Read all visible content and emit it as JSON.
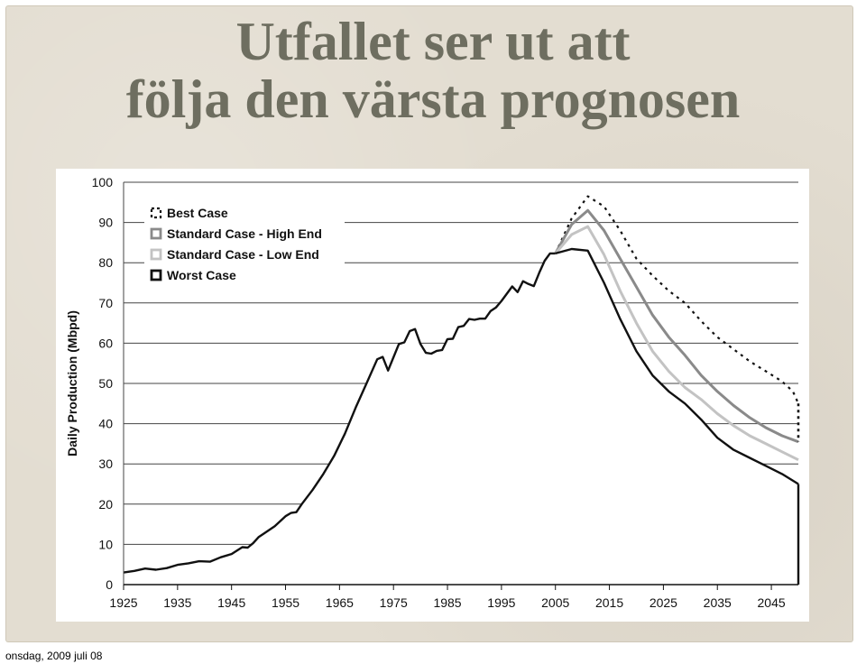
{
  "slide": {
    "title_line1": "Utfallet ser ut att",
    "title_line2": "följa den värsta prognosen",
    "footer_date": "onsdag, 2009 juli 08"
  },
  "colors": {
    "best": "#111111",
    "high": "#8a8a8a",
    "low": "#c3c3c3",
    "worst": "#111111",
    "title": "#6e6e60"
  },
  "chart_data": {
    "type": "line",
    "title": "",
    "xlabel": "",
    "ylabel": "Daily Production (Mbpd)",
    "xlim": [
      1925,
      2050
    ],
    "ylim": [
      0,
      100
    ],
    "x_ticks": [
      1925,
      1935,
      1945,
      1955,
      1965,
      1975,
      1985,
      1995,
      2005,
      2015,
      2025,
      2035,
      2045
    ],
    "y_ticks": [
      0,
      10,
      20,
      30,
      40,
      50,
      60,
      70,
      80,
      90,
      100
    ],
    "grid": "horizontal",
    "legend_position": "top-left",
    "historical": {
      "x": [
        1925,
        1927,
        1929,
        1931,
        1933,
        1935,
        1937,
        1939,
        1941,
        1943,
        1945,
        1947,
        1948,
        1949,
        1950,
        1951,
        1953,
        1955,
        1956,
        1957,
        1958,
        1960,
        1962,
        1964,
        1966,
        1968,
        1970,
        1972,
        1973,
        1974,
        1975,
        1976,
        1977,
        1978,
        1979,
        1980,
        1981,
        1982,
        1983,
        1984,
        1985,
        1986,
        1987,
        1988,
        1989,
        1990,
        1991,
        1992,
        1993,
        1994,
        1995,
        1996,
        1997,
        1998,
        1999,
        2000,
        2001,
        2002,
        2003,
        2004,
        2005
      ],
      "y": [
        3,
        3.4,
        4,
        3.7,
        4.1,
        4.9,
        5.3,
        5.8,
        5.7,
        6.8,
        7.6,
        9.3,
        9.2,
        10.3,
        11.8,
        12.7,
        14.5,
        17,
        17.8,
        18,
        20,
        23.5,
        27.5,
        32,
        37.5,
        44,
        50,
        56,
        56.6,
        53.2,
        56.5,
        59.8,
        60.2,
        63,
        63.5,
        59.8,
        57.6,
        57.4,
        58.1,
        58.3,
        61,
        61.1,
        64,
        64.3,
        66,
        65.8,
        66.1,
        66.1,
        68,
        68.9,
        70.5,
        72.3,
        74.1,
        72.7,
        75.4,
        74.7,
        74.2,
        77.5,
        80.5,
        82.3,
        82.3
      ]
    },
    "series": [
      {
        "name": "Best Case",
        "style": "dotted",
        "x": [
          2005,
          2008,
          2011,
          2014,
          2017,
          2020,
          2023,
          2026,
          2029,
          2032,
          2035,
          2038,
          2041,
          2044,
          2047,
          2049,
          2050
        ],
        "y": [
          82.3,
          91,
          96.5,
          94,
          88,
          81,
          76.8,
          73,
          70,
          65.5,
          61.5,
          58.5,
          55.5,
          53,
          50.5,
          48,
          45
        ]
      },
      {
        "name": "Standard Case - High End",
        "style": "solid",
        "x": [
          2005,
          2008,
          2011,
          2014,
          2017,
          2020,
          2023,
          2026,
          2029,
          2032,
          2035,
          2038,
          2041,
          2044,
          2047,
          2050
        ],
        "y": [
          82.3,
          89.5,
          93,
          88,
          81,
          74,
          67,
          61.5,
          57,
          52,
          48,
          44.5,
          41.5,
          39,
          37,
          35.5
        ]
      },
      {
        "name": "Standard Case - Low End",
        "style": "solid",
        "x": [
          2005,
          2008,
          2011,
          2014,
          2017,
          2020,
          2023,
          2026,
          2029,
          2032,
          2035,
          2038,
          2041,
          2044,
          2047,
          2050
        ],
        "y": [
          82.3,
          87,
          89,
          82,
          73,
          65,
          58,
          53,
          49,
          46,
          42.5,
          39.5,
          37,
          35,
          33,
          31
        ]
      },
      {
        "name": "Worst Case",
        "style": "solid",
        "x": [
          2005,
          2008,
          2011,
          2014,
          2017,
          2020,
          2023,
          2026,
          2029,
          2032,
          2035,
          2038,
          2041,
          2044,
          2047,
          2050
        ],
        "y": [
          82.3,
          83.4,
          83,
          75,
          66,
          58,
          52,
          48,
          45,
          41,
          36.5,
          33.5,
          31.5,
          29.5,
          27.5,
          25
        ]
      }
    ]
  }
}
